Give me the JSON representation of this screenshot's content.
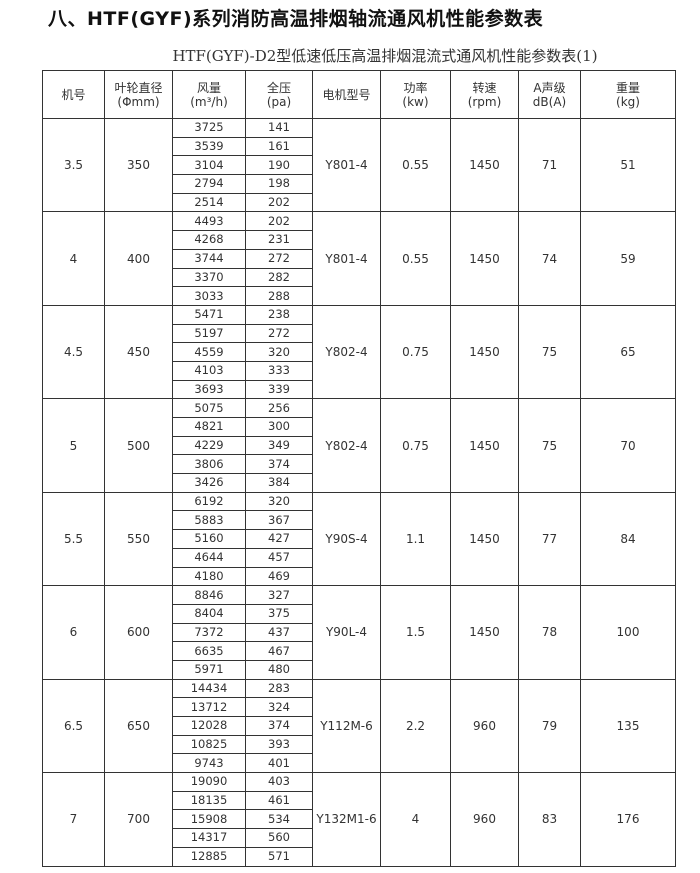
{
  "title": "八、HTF(GYF)系列消防高温排烟轴流通风机性能参数表",
  "subtitle": "HTF(GYF)-D2型低速低压高温排烟混流式通风机性能参数表(1)",
  "table": {
    "headers": [
      [
        "机号",
        ""
      ],
      [
        "叶轮直径",
        "(Φmm)"
      ],
      [
        "风量",
        "(m³/h)"
      ],
      [
        "全压",
        "(pa)"
      ],
      [
        "电机型号",
        ""
      ],
      [
        "功率",
        "(kw)"
      ],
      [
        "转速",
        "(rpm)"
      ],
      [
        "A声级",
        "dB(A)"
      ],
      [
        "重量",
        "(kg)"
      ]
    ],
    "groups": [
      {
        "model": "3.5",
        "diameter": "350",
        "airflow": [
          "3725",
          "3539",
          "3104",
          "2794",
          "2514"
        ],
        "pressure": [
          "141",
          "161",
          "190",
          "198",
          "202"
        ],
        "motor": "Y801-4",
        "power": "0.55",
        "speed": "1450",
        "noise": "71",
        "weight": "51"
      },
      {
        "model": "4",
        "diameter": "400",
        "airflow": [
          "4493",
          "4268",
          "3744",
          "3370",
          "3033"
        ],
        "pressure": [
          "202",
          "231",
          "272",
          "282",
          "288"
        ],
        "motor": "Y801-4",
        "power": "0.55",
        "speed": "1450",
        "noise": "74",
        "weight": "59"
      },
      {
        "model": "4.5",
        "diameter": "450",
        "airflow": [
          "5471",
          "5197",
          "4559",
          "4103",
          "3693"
        ],
        "pressure": [
          "238",
          "272",
          "320",
          "333",
          "339"
        ],
        "motor": "Y802-4",
        "power": "0.75",
        "speed": "1450",
        "noise": "75",
        "weight": "65"
      },
      {
        "model": "5",
        "diameter": "500",
        "airflow": [
          "5075",
          "4821",
          "4229",
          "3806",
          "3426"
        ],
        "pressure": [
          "256",
          "300",
          "349",
          "374",
          "384"
        ],
        "motor": "Y802-4",
        "power": "0.75",
        "speed": "1450",
        "noise": "75",
        "weight": "70"
      },
      {
        "model": "5.5",
        "diameter": "550",
        "airflow": [
          "6192",
          "5883",
          "5160",
          "4644",
          "4180"
        ],
        "pressure": [
          "320",
          "367",
          "427",
          "457",
          "469"
        ],
        "motor": "Y90S-4",
        "power": "1.1",
        "speed": "1450",
        "noise": "77",
        "weight": "84"
      },
      {
        "model": "6",
        "diameter": "600",
        "airflow": [
          "8846",
          "8404",
          "7372",
          "6635",
          "5971"
        ],
        "pressure": [
          "327",
          "375",
          "437",
          "467",
          "480"
        ],
        "motor": "Y90L-4",
        "power": "1.5",
        "speed": "1450",
        "noise": "78",
        "weight": "100"
      },
      {
        "model": "6.5",
        "diameter": "650",
        "airflow": [
          "14434",
          "13712",
          "12028",
          "10825",
          "9743"
        ],
        "pressure": [
          "283",
          "324",
          "374",
          "393",
          "401"
        ],
        "motor": "Y112M-6",
        "power": "2.2",
        "speed": "960",
        "noise": "79",
        "weight": "135"
      },
      {
        "model": "7",
        "diameter": "700",
        "airflow": [
          "19090",
          "18135",
          "15908",
          "14317",
          "12885"
        ],
        "pressure": [
          "403",
          "461",
          "534",
          "560",
          "571"
        ],
        "motor": "Y132M1-6",
        "power": "4",
        "speed": "960",
        "noise": "83",
        "weight": "176"
      }
    ]
  }
}
